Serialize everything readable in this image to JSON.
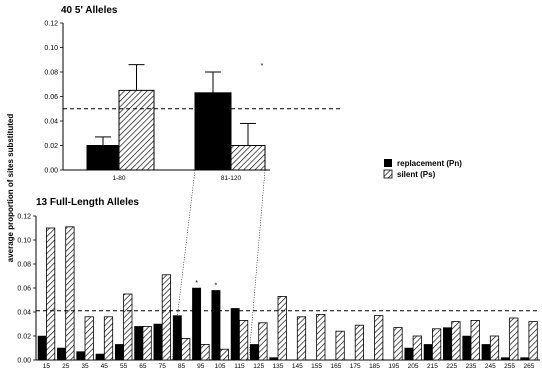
{
  "figure": {
    "ylabel": "average proportion of sites substituted",
    "legend": {
      "replacement": "replacement (Pn)",
      "silent": "silent (Ps)"
    },
    "colors": {
      "replacement": "#000000",
      "silent": "#ffffff",
      "hatch": "#000000"
    }
  },
  "chart_data": [
    {
      "type": "bar",
      "title": "40 5' Alleles",
      "categories": [
        "1-80",
        "81-120"
      ],
      "series": [
        {
          "name": "replacement (Pn)",
          "values": [
            0.02,
            0.063
          ],
          "errors": [
            0.007,
            0.017
          ]
        },
        {
          "name": "silent (Ps)",
          "values": [
            0.065,
            0.02
          ],
          "errors": [
            0.021,
            0.018
          ]
        }
      ],
      "ylim": [
        0,
        0.12
      ],
      "yticks": [
        "0.00",
        "0.02",
        "0.04",
        "0.06",
        "0.08",
        "0.10",
        "0.12"
      ],
      "reference_line": 0.05,
      "significance_marks": [
        {
          "category": "81-120",
          "series": "replacement (Pn)",
          "mark": "*"
        }
      ]
    },
    {
      "type": "bar",
      "title": "13 Full-Length Alleles",
      "categories": [
        "15",
        "25",
        "35",
        "45",
        "55",
        "65",
        "75",
        "85",
        "95",
        "105",
        "115",
        "125",
        "135",
        "145",
        "155",
        "165",
        "175",
        "185",
        "195",
        "205",
        "215",
        "225",
        "235",
        "245",
        "255",
        "265"
      ],
      "series": [
        {
          "name": "replacement (Pn)",
          "values": [
            0.02,
            0.01,
            0.007,
            0.005,
            0.013,
            0.028,
            0.03,
            0.037,
            0.06,
            0.058,
            0.043,
            0.013,
            0.002,
            0.0,
            0.0,
            0.0,
            0.0,
            0.0,
            0.0,
            0.01,
            0.013,
            0.027,
            0.02,
            0.013,
            0.002,
            0.002
          ]
        },
        {
          "name": "silent (Ps)",
          "values": [
            0.11,
            0.111,
            0.036,
            0.036,
            0.055,
            0.028,
            0.071,
            0.018,
            0.013,
            0.009,
            0.033,
            0.031,
            0.053,
            0.036,
            0.038,
            0.024,
            0.029,
            0.037,
            0.027,
            0.02,
            0.026,
            0.032,
            0.033,
            0.02,
            0.035,
            0.032
          ]
        }
      ],
      "ylim": [
        0,
        0.12
      ],
      "yticks": [
        "0.00",
        "0.02",
        "0.04",
        "0.06",
        "0.08",
        "0.10",
        "0.12"
      ],
      "reference_line": 0.041,
      "significance_marks": [
        {
          "category": "95",
          "series": "replacement (Pn)",
          "mark": "*"
        },
        {
          "category": "105",
          "series": "replacement (Pn)",
          "mark": "*"
        }
      ]
    }
  ]
}
